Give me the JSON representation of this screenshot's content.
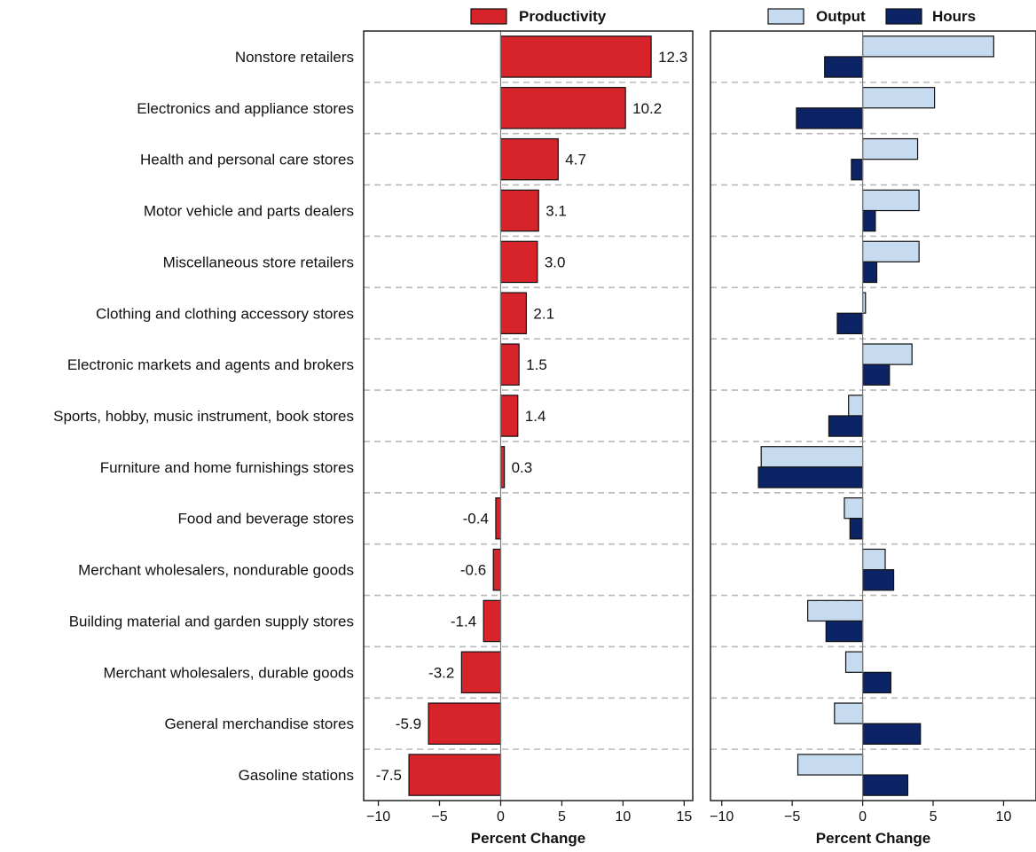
{
  "chart_data": [
    {
      "type": "bar",
      "orientation": "horizontal",
      "categories": [
        "Nonstore retailers",
        "Electronics and appliance stores",
        "Health and personal care stores",
        "Motor vehicle and parts dealers",
        "Miscellaneous store retailers",
        "Clothing and clothing accessory stores",
        "Electronic markets and agents and brokers",
        "Sports, hobby, music instrument, book stores",
        "Furniture and home furnishings stores",
        "Food and beverage stores",
        "Merchant wholesalers, nondurable goods",
        "Building material and garden supply stores",
        "Merchant wholesalers, durable goods",
        "General merchandise stores",
        "Gasoline stations"
      ],
      "series": [
        {
          "name": "Productivity",
          "color": "#d7242b",
          "values": [
            12.3,
            10.2,
            4.7,
            3.1,
            3.0,
            2.1,
            1.5,
            1.4,
            0.3,
            -0.4,
            -0.6,
            -1.4,
            -3.2,
            -5.9,
            -7.5
          ],
          "data_labels": [
            "12.3",
            "10.2",
            "4.7",
            "3.1",
            "3.0",
            "2.1",
            "1.5",
            "1.4",
            "0.3",
            "-0.4",
            "-0.6",
            "-1.4",
            "-3.2",
            "-5.9",
            "-7.5"
          ]
        }
      ],
      "xlabel": "Percent Change",
      "xlim": [
        -11.2,
        15.7
      ],
      "xticks": [
        -10,
        -5,
        0,
        5,
        10,
        15
      ],
      "xtick_labels": [
        "−10",
        "−5",
        "0",
        "5",
        "10",
        "15"
      ],
      "legend": "top",
      "grid": "dashed horizontal separators between categories"
    },
    {
      "type": "bar",
      "orientation": "horizontal",
      "categories": [
        "Nonstore retailers",
        "Electronics and appliance stores",
        "Health and personal care stores",
        "Motor vehicle and parts dealers",
        "Miscellaneous store retailers",
        "Clothing and clothing accessory stores",
        "Electronic markets and agents and brokers",
        "Sports, hobby, music instrument, book stores",
        "Furniture and home furnishings stores",
        "Food and beverage stores",
        "Merchant wholesalers, nondurable goods",
        "Building material and garden supply stores",
        "Merchant wholesalers, durable goods",
        "General merchandise stores",
        "Gasoline stations"
      ],
      "series": [
        {
          "name": "Output",
          "color": "#c6daf0",
          "values": [
            9.3,
            5.1,
            3.9,
            4.0,
            4.0,
            0.2,
            3.5,
            -1.0,
            -7.2,
            -1.3,
            1.6,
            -3.9,
            -1.2,
            -2.0,
            -4.6
          ]
        },
        {
          "name": "Hours",
          "color": "#0c2366",
          "values": [
            -2.7,
            -4.7,
            -0.8,
            0.9,
            1.0,
            -1.8,
            1.9,
            -2.4,
            -7.4,
            -0.9,
            2.2,
            -2.6,
            2.0,
            4.1,
            3.2
          ]
        }
      ],
      "xlabel": "Percent Change",
      "xlim": [
        -10.8,
        12.3
      ],
      "xticks": [
        -10,
        -5,
        0,
        5,
        10
      ],
      "xtick_labels": [
        "−10",
        "−5",
        "0",
        "5",
        "10"
      ],
      "legend": "top",
      "grid": "dashed horizontal separators between categories"
    }
  ]
}
